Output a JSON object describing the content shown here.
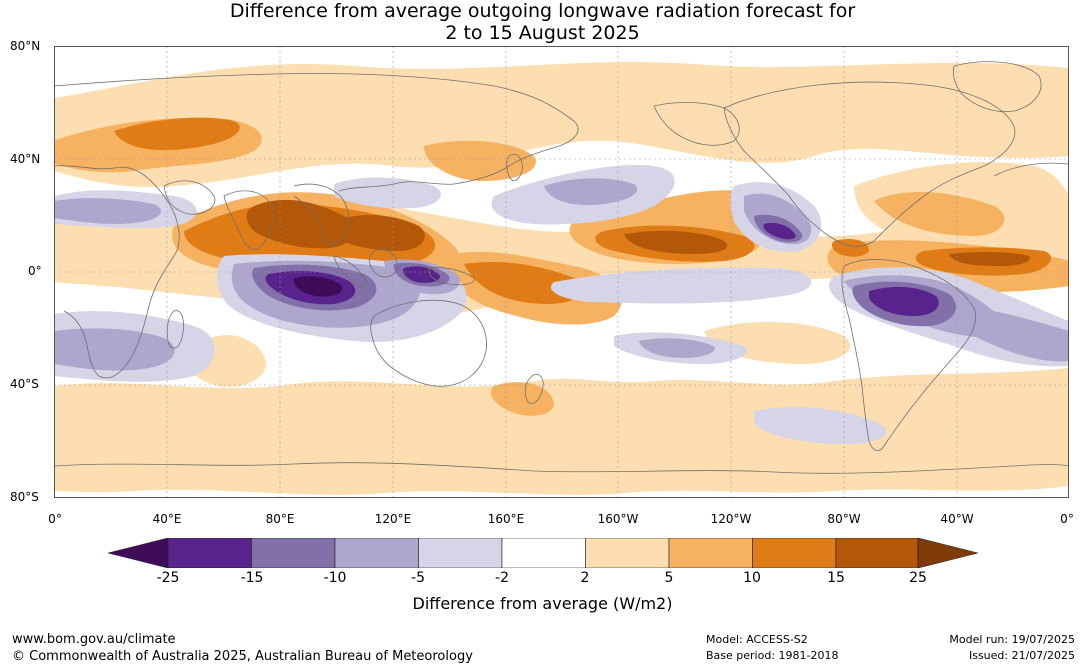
{
  "title": {
    "line1": "Difference from average outgoing longwave radiation forecast for",
    "line2": "2 to 15 August 2025"
  },
  "lat_labels": [
    "80°N",
    "40°N",
    "0°",
    "40°S",
    "80°S"
  ],
  "lon_labels": [
    "0°",
    "40°E",
    "80°E",
    "120°E",
    "160°E",
    "160°W",
    "120°W",
    "80°W",
    "40°W",
    "0°"
  ],
  "legend": {
    "ticks": [
      "-25",
      "-15",
      "-10",
      "-5",
      "-2",
      "2",
      "5",
      "10",
      "15",
      "25"
    ],
    "colors": [
      "#3f0c58",
      "#58248c",
      "#8270a9",
      "#aea6cd",
      "#d6d5e8",
      "#ffffff",
      "#fddeb0",
      "#f6b260",
      "#df7c15",
      "#b35709",
      "#7f3b08"
    ],
    "label": "Difference from average (W/m2)"
  },
  "footer": {
    "url": "www.bom.gov.au/climate",
    "copyright": "© Commonwealth of Australia 2025, Australian Bureau of Meteorology",
    "model": "Model: ACCESS-S2",
    "base_period": "Base period: 1981-2018",
    "model_run": "Model run: 19/07/2025",
    "issued": "Issued: 21/07/2025"
  },
  "map_layers": {
    "colors": {
      "p1": "#fddeb0",
      "p2": "#f6b260",
      "p3": "#df7c15",
      "p4": "#b35709",
      "n1": "#d6d5e8",
      "n2": "#aea6cd",
      "n3": "#8270a9",
      "n4": "#58248c",
      "n5": "#3f0c58",
      "coast": "#707070",
      "grid": "#aaaaaa"
    }
  }
}
